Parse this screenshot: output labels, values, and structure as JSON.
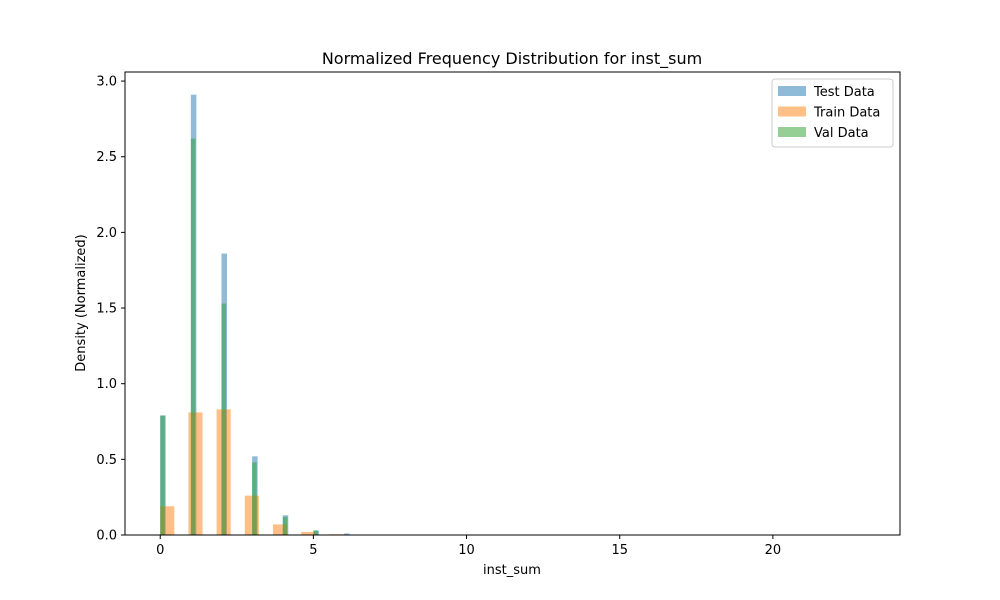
{
  "chart_data": {
    "type": "bar",
    "title": "Normalized Frequency Distribution for inst_sum",
    "xlabel": "inst_sum",
    "ylabel": "Density (Normalized)",
    "xlim": [
      -1.15,
      24.15
    ],
    "ylim": [
      0,
      3.06
    ],
    "xticks": [
      0,
      5,
      10,
      15,
      20
    ],
    "yticks": [
      0.0,
      0.5,
      1.0,
      1.5,
      2.0,
      2.5,
      3.0
    ],
    "grid": false,
    "legend_position": "top-right",
    "series": [
      {
        "name": "Test Data",
        "color": "#1f77b4",
        "bin_width": 0.18,
        "bins": [
          {
            "x": 0.0,
            "value": 0.79
          },
          {
            "x": 1.0,
            "value": 2.91
          },
          {
            "x": 2.0,
            "value": 1.86
          },
          {
            "x": 3.0,
            "value": 0.52
          },
          {
            "x": 4.0,
            "value": 0.13
          },
          {
            "x": 5.0,
            "value": 0.03
          },
          {
            "x": 6.0,
            "value": 0.01
          }
        ]
      },
      {
        "name": "Train Data",
        "color": "#ff7f0e",
        "bin_width": 0.46,
        "bins": [
          {
            "x": 0.0,
            "value": 0.19
          },
          {
            "x": 0.92,
            "value": 0.81
          },
          {
            "x": 1.84,
            "value": 0.83
          },
          {
            "x": 2.76,
            "value": 0.26
          },
          {
            "x": 3.68,
            "value": 0.07
          },
          {
            "x": 4.6,
            "value": 0.02
          },
          {
            "x": 5.52,
            "value": 0.005
          },
          {
            "x": 6.44,
            "value": 0.002
          }
        ]
      },
      {
        "name": "Val Data",
        "color": "#2ca02c",
        "bin_width": 0.15,
        "bins": [
          {
            "x": 0.0,
            "value": 0.79
          },
          {
            "x": 1.0,
            "value": 2.62
          },
          {
            "x": 2.0,
            "value": 1.53
          },
          {
            "x": 3.0,
            "value": 0.48
          },
          {
            "x": 4.0,
            "value": 0.12
          },
          {
            "x": 5.0,
            "value": 0.03
          }
        ]
      }
    ]
  }
}
